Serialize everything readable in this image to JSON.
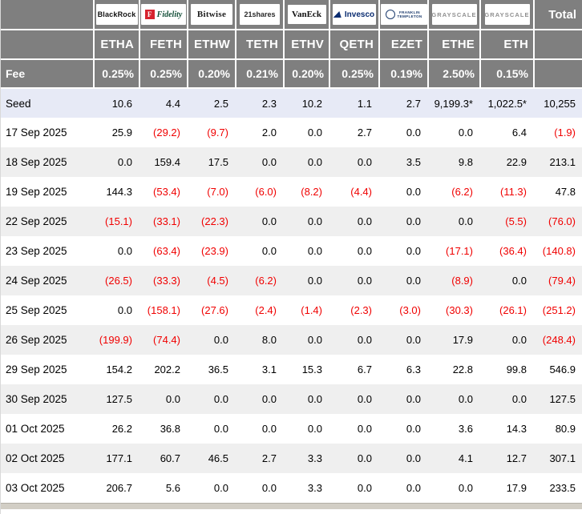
{
  "table": {
    "fee_label": "Fee",
    "total_label": "Total",
    "providers": [
      {
        "name": "BlackRock",
        "ticker": "ETHA",
        "fee": "0.25%"
      },
      {
        "name": "Fidelity",
        "icon_letter": "F",
        "ticker": "FETH",
        "fee": "0.25%"
      },
      {
        "name": "Bitwise",
        "ticker": "ETHW",
        "fee": "0.20%"
      },
      {
        "name": "21shares",
        "ticker": "TETH",
        "fee": "0.21%"
      },
      {
        "name": "VanEck",
        "ticker": "ETHV",
        "fee": "0.20%"
      },
      {
        "name": "Invesco",
        "ticker": "QETH",
        "fee": "0.25%"
      },
      {
        "name_line1": "FRANKLIN",
        "name_line2": "TEMPLETON",
        "ticker": "EZET",
        "fee": "0.19%"
      },
      {
        "name": "GRAYSCALE",
        "ticker": "ETHE",
        "fee": "2.50%"
      },
      {
        "name": "GRAYSCALE",
        "ticker": "ETH",
        "fee": "0.15%"
      }
    ],
    "rows": [
      {
        "label": "Seed",
        "highlight": true,
        "values": [
          "10.6",
          "4.4",
          "2.5",
          "2.3",
          "10.2",
          "1.1",
          "2.7",
          "9,199.3*",
          "1,022.5*",
          "10,255"
        ]
      },
      {
        "label": "17 Sep 2025",
        "values": [
          "25.9",
          "(29.2)",
          "(9.7)",
          "2.0",
          "0.0",
          "2.7",
          "0.0",
          "0.0",
          "6.4",
          "(1.9)"
        ]
      },
      {
        "label": "18 Sep 2025",
        "values": [
          "0.0",
          "159.4",
          "17.5",
          "0.0",
          "0.0",
          "0.0",
          "3.5",
          "9.8",
          "22.9",
          "213.1"
        ]
      },
      {
        "label": "19 Sep 2025",
        "values": [
          "144.3",
          "(53.4)",
          "(7.0)",
          "(6.0)",
          "(8.2)",
          "(4.4)",
          "0.0",
          "(6.2)",
          "(11.3)",
          "47.8"
        ]
      },
      {
        "label": "22 Sep 2025",
        "values": [
          "(15.1)",
          "(33.1)",
          "(22.3)",
          "0.0",
          "0.0",
          "0.0",
          "0.0",
          "0.0",
          "(5.5)",
          "(76.0)"
        ]
      },
      {
        "label": "23 Sep 2025",
        "values": [
          "0.0",
          "(63.4)",
          "(23.9)",
          "0.0",
          "0.0",
          "0.0",
          "0.0",
          "(17.1)",
          "(36.4)",
          "(140.8)"
        ]
      },
      {
        "label": "24 Sep 2025",
        "values": [
          "(26.5)",
          "(33.3)",
          "(4.5)",
          "(6.2)",
          "0.0",
          "0.0",
          "0.0",
          "(8.9)",
          "0.0",
          "(79.4)"
        ]
      },
      {
        "label": "25 Sep 2025",
        "values": [
          "0.0",
          "(158.1)",
          "(27.6)",
          "(2.4)",
          "(1.4)",
          "(2.3)",
          "(3.0)",
          "(30.3)",
          "(26.1)",
          "(251.2)"
        ]
      },
      {
        "label": "26 Sep 2025",
        "values": [
          "(199.9)",
          "(74.4)",
          "0.0",
          "8.0",
          "0.0",
          "0.0",
          "0.0",
          "17.9",
          "0.0",
          "(248.4)"
        ]
      },
      {
        "label": "29 Sep 2025",
        "values": [
          "154.2",
          "202.2",
          "36.5",
          "3.1",
          "15.3",
          "6.7",
          "6.3",
          "22.8",
          "99.8",
          "546.9"
        ]
      },
      {
        "label": "30 Sep 2025",
        "values": [
          "127.5",
          "0.0",
          "0.0",
          "0.0",
          "0.0",
          "0.0",
          "0.0",
          "0.0",
          "0.0",
          "127.5"
        ]
      },
      {
        "label": "01 Oct 2025",
        "values": [
          "26.2",
          "36.8",
          "0.0",
          "0.0",
          "0.0",
          "0.0",
          "0.0",
          "3.6",
          "14.3",
          "80.9"
        ]
      },
      {
        "label": "02 Oct 2025",
        "values": [
          "177.1",
          "60.7",
          "46.5",
          "2.7",
          "3.3",
          "0.0",
          "0.0",
          "4.1",
          "12.7",
          "307.1"
        ]
      },
      {
        "label": "03 Oct 2025",
        "values": [
          "206.7",
          "5.6",
          "0.0",
          "0.0",
          "3.3",
          "0.0",
          "0.0",
          "0.0",
          "17.9",
          "233.5"
        ]
      }
    ]
  },
  "colors": {
    "header_bg": "#7f7f7f",
    "seed_row_bg": "#e7eaf6",
    "stripe_row_bg": "#efefef",
    "negative": "#f00000"
  }
}
